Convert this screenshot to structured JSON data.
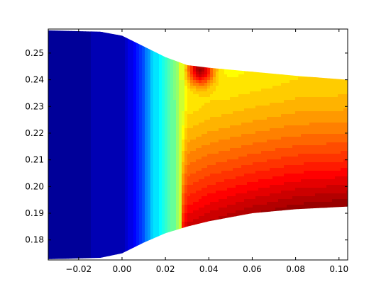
{
  "chart_data": {
    "type": "contourf",
    "colormap": "jet",
    "title": "",
    "xlabel": "",
    "ylabel": "",
    "xlim": [
      -0.034,
      0.104
    ],
    "ylim": [
      0.1725,
      0.259
    ],
    "xticks": [
      -0.02,
      0.0,
      0.02,
      0.04,
      0.06,
      0.08,
      0.1
    ],
    "xtick_labels": [
      "−0.02",
      "0.00",
      "0.02",
      "0.04",
      "0.06",
      "0.08",
      "0.10"
    ],
    "yticks": [
      0.18,
      0.19,
      0.2,
      0.21,
      0.22,
      0.23,
      0.24,
      0.25
    ],
    "ytick_labels": [
      "0.18",
      "0.19",
      "0.20",
      "0.21",
      "0.22",
      "0.23",
      "0.24",
      "0.25"
    ],
    "grid": false,
    "levels": 40,
    "domain_upper_wall": [
      [
        -0.034,
        0.2585
      ],
      [
        -0.01,
        0.258
      ],
      [
        0.0,
        0.2565
      ],
      [
        0.01,
        0.2525
      ],
      [
        0.02,
        0.2485
      ],
      [
        0.03,
        0.2455
      ],
      [
        0.04,
        0.2445
      ],
      [
        0.06,
        0.243
      ],
      [
        0.08,
        0.2415
      ],
      [
        0.104,
        0.24
      ]
    ],
    "domain_lower_wall": [
      [
        -0.034,
        0.1728
      ],
      [
        -0.01,
        0.1733
      ],
      [
        0.0,
        0.175
      ],
      [
        0.01,
        0.179
      ],
      [
        0.02,
        0.1825
      ],
      [
        0.03,
        0.185
      ],
      [
        0.04,
        0.187
      ],
      [
        0.06,
        0.19
      ],
      [
        0.08,
        0.1915
      ],
      [
        0.104,
        0.1925
      ]
    ],
    "field_profile_along_x": [
      [
        -0.034,
        0.02
      ],
      [
        0.0,
        0.05
      ],
      [
        0.008,
        0.15
      ],
      [
        0.014,
        0.32
      ],
      [
        0.02,
        0.42
      ],
      [
        0.025,
        0.5
      ],
      [
        0.03,
        0.68
      ],
      [
        0.04,
        0.7
      ],
      [
        0.06,
        0.72
      ],
      [
        0.08,
        0.74
      ],
      [
        0.104,
        0.75
      ]
    ],
    "hot_spot": {
      "x": 0.036,
      "y": 0.244,
      "value": 1.0
    },
    "colors": {
      "low": "#00007f",
      "high": "#7f0000",
      "frame": "#000000"
    }
  }
}
